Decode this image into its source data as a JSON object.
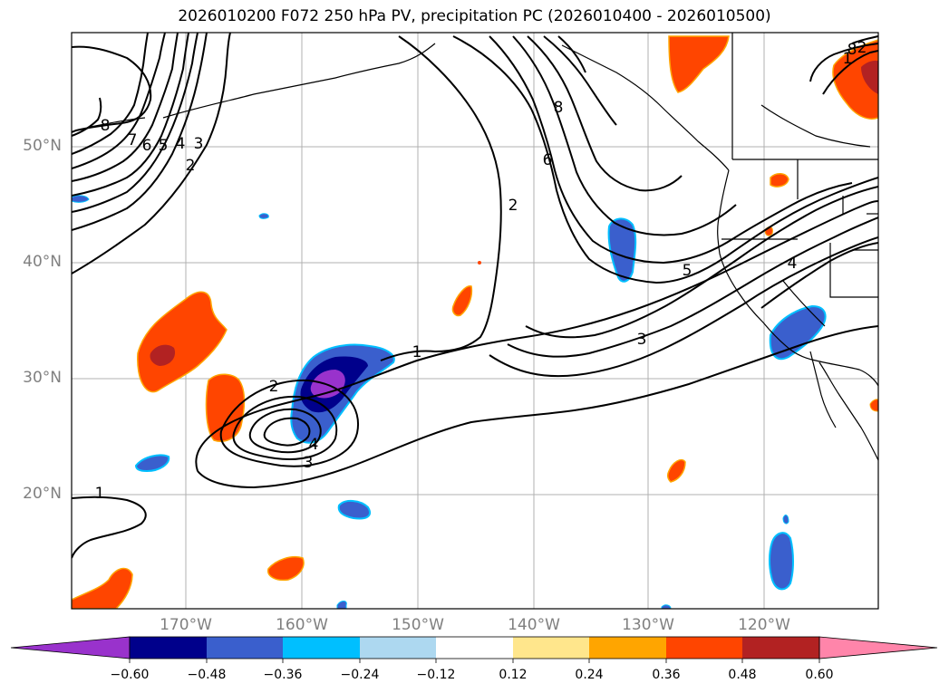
{
  "title": "2026010200 F072 250 hPa PV, precipitation PC (2026010400 - 2026010500)",
  "map": {
    "lat_labels": [
      "50°N",
      "40°N",
      "30°N",
      "20°N"
    ],
    "lon_labels": [
      "170°W",
      "160°W",
      "150°W",
      "140°W",
      "130°W",
      "120°W"
    ],
    "contour_labels": [
      "8",
      "7",
      "6",
      "5",
      "4",
      "3",
      "2",
      "1",
      "2",
      "3",
      "4",
      "1",
      "8",
      "6",
      "2",
      "5",
      "3",
      "4",
      "8",
      "2",
      "1"
    ],
    "colors": {
      "contour": "#000000",
      "coast": "#000000",
      "grid": "#b0b0b0",
      "land_background": "#ffffff"
    }
  },
  "colorbar": {
    "ticks": [
      "−0.60",
      "−0.48",
      "−0.36",
      "−0.24",
      "−0.12",
      "0.12",
      "0.24",
      "0.36",
      "0.48",
      "0.60"
    ],
    "colors": [
      "#9932cc",
      "#00008b",
      "#3a5fcd",
      "#00bfff",
      "#add8f0",
      "#ffffff",
      "#ffe68c",
      "#ffa500",
      "#ff4500",
      "#b22222",
      "#ff85aa"
    ]
  }
}
